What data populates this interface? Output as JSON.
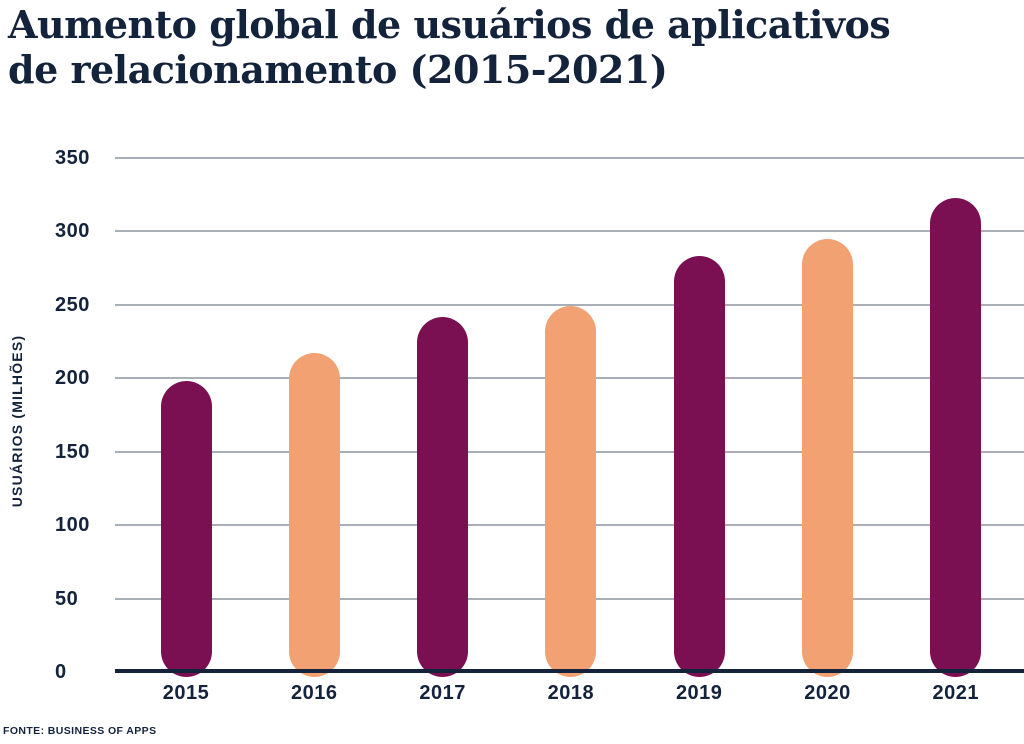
{
  "title": {
    "line1": "Aumento global de usuários de aplicativos",
    "line2": "de relacionamento (2015-2021)"
  },
  "colors": {
    "navy": "#14233C",
    "purple": "#7A0F52",
    "peach": "#F2A173",
    "grid": "#A9AFB8",
    "background": "#FFFFFF"
  },
  "chart_data": {
    "type": "bar",
    "title": "Aumento global de usuários de aplicativos de relacionamento (2015-2021)",
    "categories": [
      "2015",
      "2016",
      "2017",
      "2018",
      "2019",
      "2020",
      "2021"
    ],
    "values": [
      198,
      217,
      242,
      249,
      283,
      295,
      323
    ],
    "bar_colors": [
      "#7A0F52",
      "#F2A173",
      "#7A0F52",
      "#F2A173",
      "#7A0F52",
      "#F2A173",
      "#7A0F52"
    ],
    "xlabel": "",
    "ylabel": "USUÁRIOS (MILHÕES)",
    "ylim": [
      0,
      350
    ],
    "yticks": [
      0,
      50,
      100,
      150,
      200,
      250,
      300,
      350
    ],
    "grid": "horizontal",
    "legend": "none"
  },
  "source": {
    "label": "FONTE: BUSINESS OF APPS"
  }
}
